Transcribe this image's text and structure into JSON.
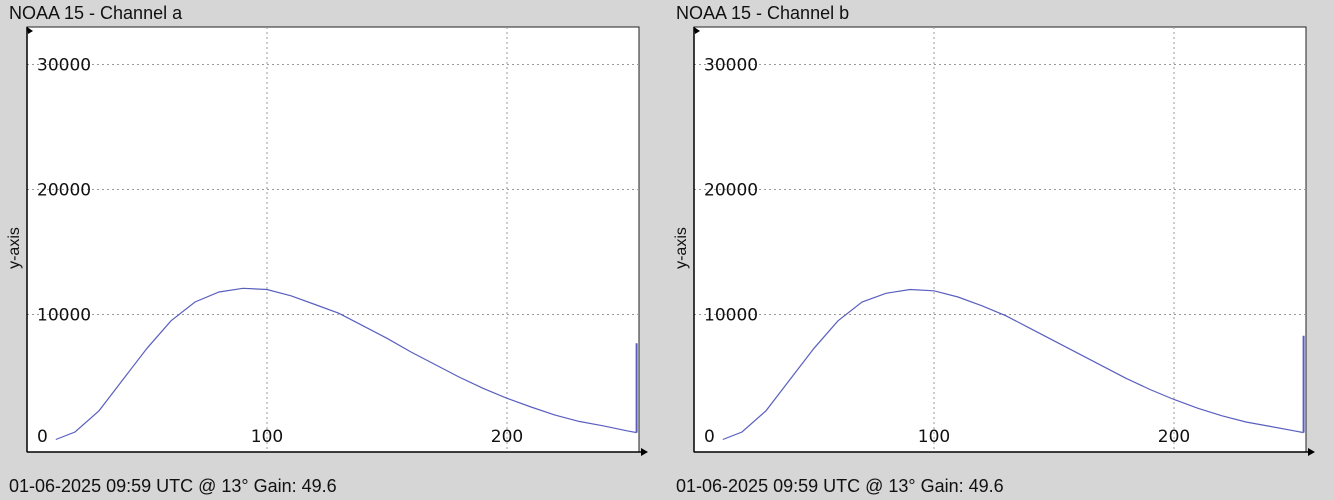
{
  "chart_data": [
    {
      "type": "line",
      "title": "NOAA 15 - Channel a",
      "ylabel": "y-axis",
      "xlabel": "",
      "footer": "01-06-2025 09:59 UTC @ 13° Gain: 49.6",
      "xlim": [
        0,
        255
      ],
      "ylim": [
        -1000,
        33000
      ],
      "xticks": [
        0,
        100,
        200
      ],
      "yticks": [
        10000,
        20000,
        30000
      ],
      "xtick_labels": [
        "0",
        "100",
        "200"
      ],
      "ytick_labels": [
        "10000",
        "20000",
        "30000"
      ],
      "grid": true,
      "series": [
        {
          "color": "#5a5fbf",
          "x": [
            12,
            20,
            30,
            40,
            50,
            60,
            70,
            80,
            90,
            100,
            110,
            120,
            130,
            140,
            150,
            160,
            170,
            180,
            190,
            200,
            210,
            220,
            230,
            240,
            250,
            254
          ],
          "y": [
            0,
            600,
            2300,
            4800,
            7300,
            9500,
            11000,
            11800,
            12100,
            12000,
            11500,
            10800,
            10100,
            9100,
            8100,
            7000,
            6000,
            5000,
            4100,
            3300,
            2600,
            1950,
            1450,
            1100,
            700,
            550
          ],
          "end_spike": 7700
        }
      ]
    },
    {
      "type": "line",
      "title": "NOAA 15 - Channel b",
      "ylabel": "y-axis",
      "xlabel": "",
      "footer": "01-06-2025 09:59 UTC @ 13° Gain: 49.6",
      "xlim": [
        0,
        255
      ],
      "ylim": [
        -1000,
        33000
      ],
      "xticks": [
        0,
        100,
        200
      ],
      "yticks": [
        10000,
        20000,
        30000
      ],
      "xtick_labels": [
        "0",
        "100",
        "200"
      ],
      "ytick_labels": [
        "10000",
        "20000",
        "30000"
      ],
      "grid": true,
      "series": [
        {
          "color": "#5a5fbf",
          "x": [
            12,
            20,
            30,
            40,
            50,
            60,
            70,
            80,
            90,
            100,
            110,
            120,
            130,
            140,
            150,
            160,
            170,
            180,
            190,
            200,
            210,
            220,
            230,
            240,
            250,
            254
          ],
          "y": [
            0,
            600,
            2300,
            4800,
            7300,
            9500,
            11000,
            11700,
            12000,
            11900,
            11400,
            10700,
            9900,
            8900,
            7900,
            6900,
            5900,
            4900,
            4000,
            3200,
            2500,
            1900,
            1400,
            1050,
            700,
            550
          ],
          "end_spike": 8300
        }
      ]
    }
  ]
}
